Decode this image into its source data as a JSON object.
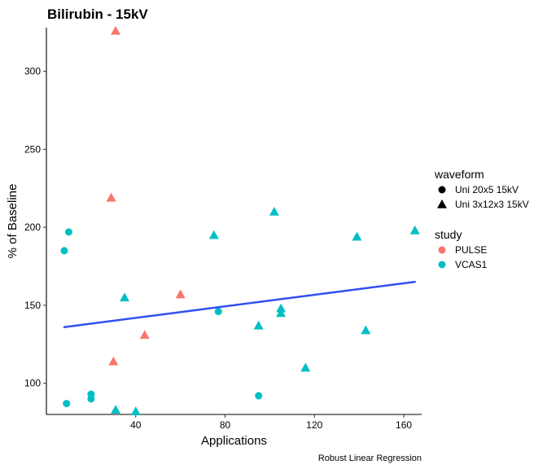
{
  "chart_data": {
    "type": "scatter",
    "title": "Bilirubin - 15kV",
    "xlabel": "Applications",
    "ylabel": "% of Baseline",
    "caption": "Robust Linear Regression",
    "xlim": [
      0,
      168
    ],
    "ylim": [
      80,
      328
    ],
    "xticks": [
      40,
      80,
      120,
      160
    ],
    "yticks": [
      100,
      150,
      200,
      250,
      300
    ],
    "grid": false,
    "legend_position": "right",
    "colors": {
      "PULSE": "#F8766D",
      "VCAS1": "#00BFC4",
      "fit": "#3050F0"
    },
    "legends": [
      {
        "title": "waveform",
        "items": [
          {
            "label": "Uni 20x5 15kV",
            "shape": "circle"
          },
          {
            "label": "Uni 3x12x3 15kV",
            "shape": "triangle"
          }
        ]
      },
      {
        "title": "study",
        "items": [
          {
            "label": "PULSE",
            "color": "#F8766D"
          },
          {
            "label": "VCAS1",
            "color": "#00BFC4"
          }
        ]
      }
    ],
    "points": [
      {
        "x": 31,
        "y": 326,
        "study": "PULSE",
        "waveform": "Uni 3x12x3 15kV"
      },
      {
        "x": 29,
        "y": 219,
        "study": "PULSE",
        "waveform": "Uni 3x12x3 15kV"
      },
      {
        "x": 60,
        "y": 157,
        "study": "PULSE",
        "waveform": "Uni 3x12x3 15kV"
      },
      {
        "x": 44,
        "y": 131,
        "study": "PULSE",
        "waveform": "Uni 3x12x3 15kV"
      },
      {
        "x": 30,
        "y": 114,
        "study": "PULSE",
        "waveform": "Uni 3x12x3 15kV"
      },
      {
        "x": 10,
        "y": 197,
        "study": "VCAS1",
        "waveform": "Uni 20x5 15kV"
      },
      {
        "x": 8,
        "y": 185,
        "study": "VCAS1",
        "waveform": "Uni 20x5 15kV"
      },
      {
        "x": 77,
        "y": 146,
        "study": "VCAS1",
        "waveform": "Uni 20x5 15kV"
      },
      {
        "x": 20,
        "y": 93,
        "study": "VCAS1",
        "waveform": "Uni 20x5 15kV"
      },
      {
        "x": 20,
        "y": 90,
        "study": "VCAS1",
        "waveform": "Uni 20x5 15kV"
      },
      {
        "x": 9,
        "y": 87,
        "study": "VCAS1",
        "waveform": "Uni 20x5 15kV"
      },
      {
        "x": 95,
        "y": 92,
        "study": "VCAS1",
        "waveform": "Uni 20x5 15kV"
      },
      {
        "x": 102,
        "y": 210,
        "study": "VCAS1",
        "waveform": "Uni 3x12x3 15kV"
      },
      {
        "x": 75,
        "y": 195,
        "study": "VCAS1",
        "waveform": "Uni 3x12x3 15kV"
      },
      {
        "x": 139,
        "y": 194,
        "study": "VCAS1",
        "waveform": "Uni 3x12x3 15kV"
      },
      {
        "x": 165,
        "y": 198,
        "study": "VCAS1",
        "waveform": "Uni 3x12x3 15kV"
      },
      {
        "x": 35,
        "y": 155,
        "study": "VCAS1",
        "waveform": "Uni 3x12x3 15kV"
      },
      {
        "x": 105,
        "y": 148,
        "study": "VCAS1",
        "waveform": "Uni 3x12x3 15kV"
      },
      {
        "x": 105,
        "y": 145,
        "study": "VCAS1",
        "waveform": "Uni 3x12x3 15kV"
      },
      {
        "x": 95,
        "y": 137,
        "study": "VCAS1",
        "waveform": "Uni 3x12x3 15kV"
      },
      {
        "x": 143,
        "y": 134,
        "study": "VCAS1",
        "waveform": "Uni 3x12x3 15kV"
      },
      {
        "x": 116,
        "y": 110,
        "study": "VCAS1",
        "waveform": "Uni 3x12x3 15kV"
      },
      {
        "x": 31,
        "y": 83,
        "study": "VCAS1",
        "waveform": "Uni 3x12x3 15kV"
      },
      {
        "x": 40,
        "y": 82,
        "study": "VCAS1",
        "waveform": "Uni 3x12x3 15kV"
      }
    ],
    "fit_line": {
      "x": [
        8,
        165
      ],
      "y": [
        136,
        165
      ]
    }
  }
}
